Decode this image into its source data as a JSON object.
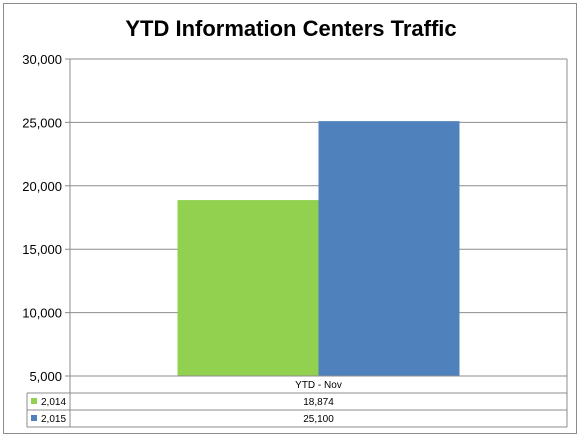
{
  "chart_data": {
    "type": "bar",
    "title": "YTD Information Centers Traffic",
    "categories": [
      "YTD - Nov"
    ],
    "series": [
      {
        "name": "2,014",
        "values": [
          18874
        ],
        "value_labels": [
          "18,874"
        ],
        "color": "#92d050"
      },
      {
        "name": "2,015",
        "values": [
          25100
        ],
        "value_labels": [
          "25,100"
        ],
        "color": "#4f81bd"
      }
    ],
    "ylim": [
      5000,
      30000
    ],
    "yticks": [
      5000,
      10000,
      15000,
      20000,
      25000,
      30000
    ],
    "ytick_labels": [
      "5,000",
      "10,000",
      "15,000",
      "20,000",
      "25,000",
      "30,000"
    ],
    "grid": true,
    "legend": "data table"
  }
}
